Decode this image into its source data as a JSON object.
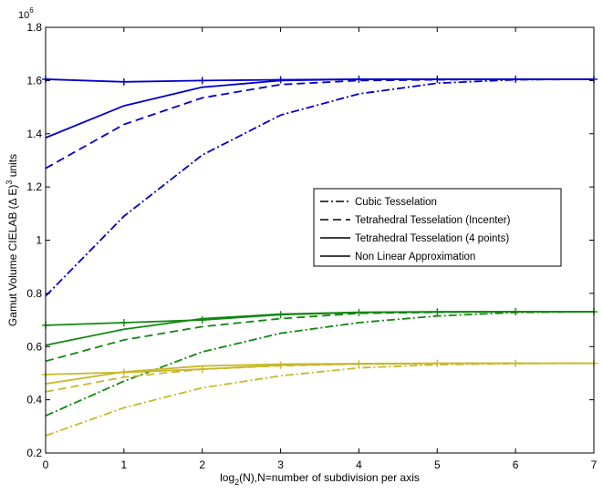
{
  "chart_data": {
    "type": "line",
    "title": "",
    "xlabel": "log2(N),N=number of subdivision per axis",
    "ylabel": "Gamut Volume CIELAB (Δ E)3 units",
    "ylabel_parts": {
      "main": "Gamut Volume CIELAB (Δ E)",
      "sup": "3",
      "tail": " units"
    },
    "xlabel_parts": {
      "pre": "log",
      "sub": "2",
      "post": "(N),N=number of subdivision per axis"
    },
    "y_scale_exponent": "10",
    "y_scale_power": "6",
    "xlim": [
      0,
      7
    ],
    "ylim": [
      0.2,
      1.8
    ],
    "x_ticks": [
      "0",
      "1",
      "2",
      "3",
      "4",
      "5",
      "6",
      "7"
    ],
    "y_ticks": [
      "0.2",
      "0.4",
      "0.6",
      "0.8",
      "1",
      "1.2",
      "1.4",
      "1.6",
      "1.8"
    ],
    "grid": false,
    "legend_position": "center-right",
    "legend": [
      {
        "label": "Cubic Tesselation",
        "style": "dashdot"
      },
      {
        "label": "Tetrahedral Tesselation (Incenter)",
        "style": "dashed"
      },
      {
        "label": "Tetrahedral Tesselation (4 points)",
        "style": "solid"
      },
      {
        "label": "Non Linear Approximation",
        "style": "solid-plus"
      }
    ],
    "x": [
      0,
      1,
      2,
      3,
      4,
      5,
      6,
      7
    ],
    "series": [
      {
        "group": "blue",
        "color": "#0000cc",
        "style": "dashdot",
        "values": [
          0.79,
          1.09,
          1.32,
          1.47,
          1.55,
          1.59,
          1.603,
          1.605
        ]
      },
      {
        "group": "blue",
        "color": "#0000cc",
        "style": "dashed",
        "values": [
          1.27,
          1.435,
          1.535,
          1.585,
          1.6,
          1.603,
          1.605,
          1.605
        ]
      },
      {
        "group": "blue",
        "color": "#0000cc",
        "style": "solid",
        "values": [
          1.385,
          1.505,
          1.575,
          1.6,
          1.605,
          1.605,
          1.605,
          1.605
        ]
      },
      {
        "group": "blue",
        "color": "#0000cc",
        "style": "solid-plus",
        "values": [
          1.605,
          1.595,
          1.6,
          1.603,
          1.605,
          1.605,
          1.605,
          1.605
        ]
      },
      {
        "group": "green",
        "color": "#118811",
        "style": "dashdot",
        "values": [
          0.34,
          0.47,
          0.58,
          0.65,
          0.69,
          0.715,
          0.728,
          0.731
        ]
      },
      {
        "group": "green",
        "color": "#118811",
        "style": "dashed",
        "values": [
          0.545,
          0.625,
          0.675,
          0.705,
          0.725,
          0.729,
          0.731,
          0.731
        ]
      },
      {
        "group": "green",
        "color": "#118811",
        "style": "solid",
        "values": [
          0.605,
          0.665,
          0.705,
          0.722,
          0.729,
          0.731,
          0.731,
          0.731
        ]
      },
      {
        "group": "green",
        "color": "#118811",
        "style": "solid-plus",
        "values": [
          0.68,
          0.69,
          0.7,
          0.72,
          0.728,
          0.73,
          0.731,
          0.731
        ]
      },
      {
        "group": "yellow",
        "color": "#c8b82a",
        "style": "dashdot",
        "values": [
          0.265,
          0.37,
          0.445,
          0.49,
          0.52,
          0.532,
          0.536,
          0.537
        ]
      },
      {
        "group": "yellow",
        "color": "#c8b82a",
        "style": "dashed",
        "values": [
          0.43,
          0.485,
          0.515,
          0.528,
          0.534,
          0.536,
          0.537,
          0.537
        ]
      },
      {
        "group": "yellow",
        "color": "#c8b82a",
        "style": "solid",
        "values": [
          0.46,
          0.505,
          0.527,
          0.534,
          0.536,
          0.537,
          0.537,
          0.537
        ]
      },
      {
        "group": "yellow",
        "color": "#c8b82a",
        "style": "solid-plus",
        "values": [
          0.495,
          0.503,
          0.515,
          0.53,
          0.535,
          0.537,
          0.537,
          0.537
        ]
      }
    ]
  }
}
